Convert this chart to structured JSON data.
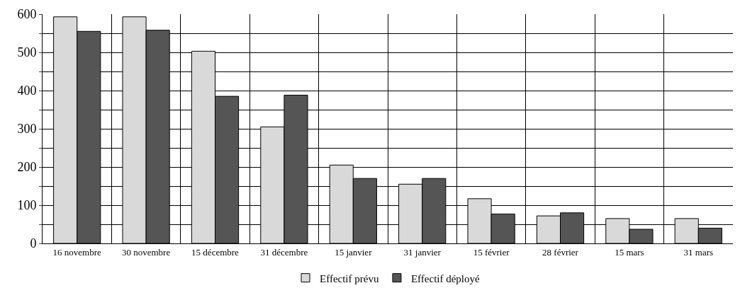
{
  "chart_data": {
    "type": "bar",
    "categories": [
      "16 novembre",
      "30 novembre",
      "15 décembre",
      "31 décembre",
      "15 janvier",
      "31 janvier",
      "15 février",
      "28 février",
      "15 mars",
      "31 mars"
    ],
    "series": [
      {
        "name": "Effectif prévu",
        "color": "#d9d9d9",
        "values": [
          593,
          593,
          503,
          305,
          205,
          155,
          117,
          72,
          65,
          65
        ]
      },
      {
        "name": "Effectif déployé",
        "color": "#555555",
        "values": [
          555,
          558,
          385,
          388,
          170,
          170,
          77,
          80,
          37,
          40
        ]
      }
    ],
    "ylim": [
      0,
      600
    ],
    "yticks": [
      0,
      {
        "value": 50,
        "label": null
      },
      100,
      {
        "value": 150,
        "label": null
      },
      200,
      {
        "value": 250,
        "label": null
      },
      300,
      {
        "value": 350,
        "label": null
      },
      400,
      {
        "value": 450,
        "label": null
      },
      500,
      {
        "value": 550,
        "label": null
      },
      600
    ],
    "grid": true,
    "legend": "bottom"
  }
}
